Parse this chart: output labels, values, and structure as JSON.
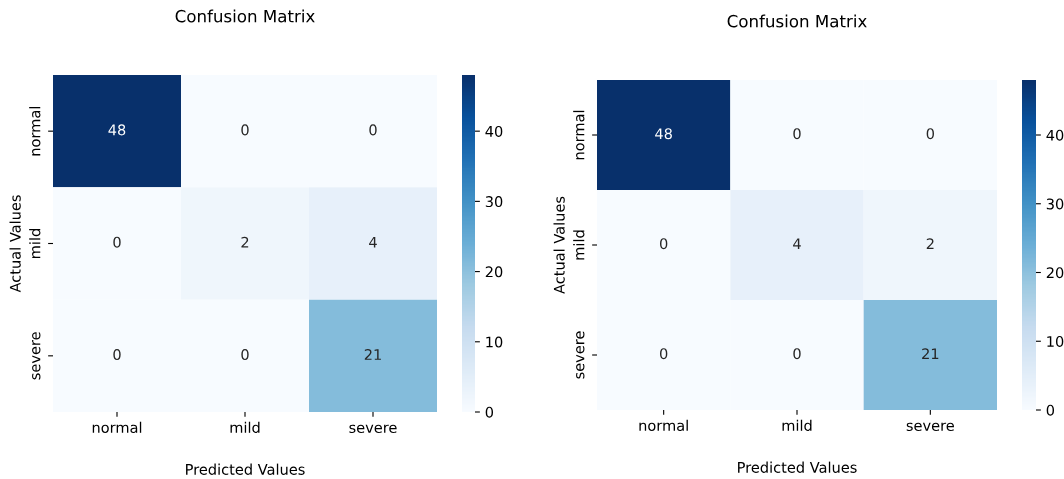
{
  "chart_data": [
    {
      "type": "heatmap",
      "title": "Confusion Matrix",
      "xlabel": "Predicted Values",
      "ylabel": "Actual Values",
      "categories": [
        "normal",
        "mild",
        "severe"
      ],
      "y_categories": [
        "normal",
        "mild",
        "severe"
      ],
      "cells": [
        [
          48,
          0,
          0
        ],
        [
          0,
          2,
          4
        ],
        [
          0,
          0,
          21
        ]
      ],
      "clim": [
        0,
        48
      ],
      "cticks": [
        0,
        10,
        20,
        30,
        40
      ],
      "data_labels": true
    },
    {
      "type": "heatmap",
      "title": "Confusion Matrix",
      "xlabel": "Predicted Values",
      "ylabel": "Actual Values",
      "categories": [
        "normal",
        "mild",
        "severe"
      ],
      "y_categories": [
        "normal",
        "mild",
        "severe"
      ],
      "cells": [
        [
          48,
          0,
          0
        ],
        [
          0,
          4,
          2
        ],
        [
          0,
          0,
          21
        ]
      ],
      "clim": [
        0,
        48
      ],
      "cticks": [
        0,
        10,
        20,
        30,
        40
      ],
      "data_labels": true
    }
  ]
}
